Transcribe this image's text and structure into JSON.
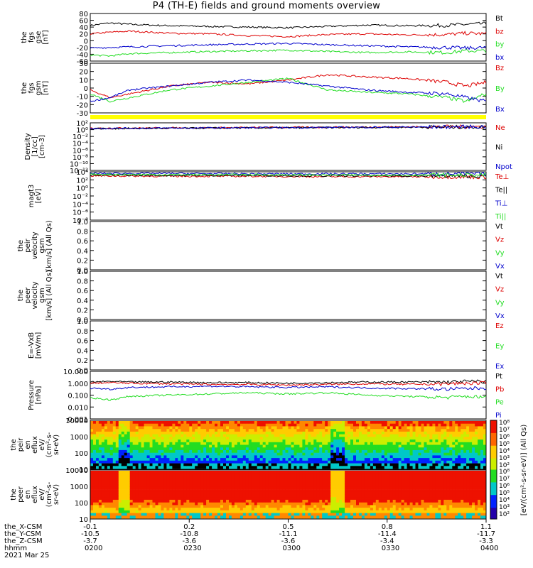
{
  "title": "P4 (TH-E) fields and ground moments overview",
  "date_label": "2021 Mar 25",
  "colors": {
    "black": "#000000",
    "red": "#dd0000",
    "green": "#22dd22",
    "blue": "#0000cc",
    "yellow": "#ffff00"
  },
  "x_axis": {
    "ticks": [
      {
        "the_X_CSM": "-0.1",
        "the_Y_CSM": "-10.5",
        "the_Z_CSM": "-3.7",
        "hhmm": "0200"
      },
      {
        "the_X_CSM": "0.2",
        "the_Y_CSM": "-10.8",
        "the_Z_CSM": "-3.6",
        "hhmm": "0230"
      },
      {
        "the_X_CSM": "0.5",
        "the_Y_CSM": "-11.1",
        "the_Z_CSM": "-3.6",
        "hhmm": "0300"
      },
      {
        "the_X_CSM": "0.8",
        "the_Y_CSM": "-11.4",
        "the_Z_CSM": "-3.4",
        "hhmm": "0330"
      },
      {
        "the_X_CSM": "1.1",
        "the_Y_CSM": "-11.7",
        "the_Z_CSM": "-3.3",
        "hhmm": "0400"
      }
    ],
    "row_labels": [
      "the_X-CSM",
      "the_Y-CSM",
      "the_Z-CSM",
      "hhmm"
    ]
  },
  "chart_data": [
    {
      "type": "line",
      "id": "fgs",
      "ylabel": [
        "the",
        "fgs",
        "gse",
        "[nT]"
      ],
      "yticks": [
        "80",
        "60",
        "40",
        "20",
        "0",
        "-20",
        "-40",
        "-60"
      ],
      "ylim": [
        -60,
        80
      ],
      "legend": [
        "Bt",
        "bz",
        "by",
        "bx"
      ],
      "series": [
        {
          "name": "Bt",
          "color": "#000000",
          "x": [
            0,
            0.05,
            0.1,
            0.2,
            0.3,
            0.4,
            0.5,
            0.6,
            0.7,
            0.8,
            0.9,
            0.95,
            1
          ],
          "values": [
            45,
            52,
            48,
            44,
            42,
            40,
            38,
            42,
            46,
            44,
            45,
            48,
            50
          ]
        },
        {
          "name": "bz",
          "color": "#dd0000",
          "x": [
            0,
            0.05,
            0.1,
            0.2,
            0.3,
            0.4,
            0.5,
            0.6,
            0.7,
            0.8,
            0.9,
            0.95,
            1
          ],
          "values": [
            20,
            25,
            28,
            22,
            20,
            15,
            12,
            18,
            20,
            17,
            18,
            22,
            20
          ]
        },
        {
          "name": "by",
          "color": "#22dd22",
          "x": [
            0,
            0.05,
            0.1,
            0.2,
            0.3,
            0.4,
            0.5,
            0.6,
            0.7,
            0.8,
            0.9,
            0.95,
            1
          ],
          "values": [
            -42,
            -45,
            -38,
            -35,
            -32,
            -30,
            -28,
            -32,
            -35,
            -33,
            -35,
            -30,
            -30
          ]
        },
        {
          "name": "bx",
          "color": "#0000cc",
          "x": [
            0,
            0.05,
            0.1,
            0.2,
            0.3,
            0.4,
            0.5,
            0.6,
            0.7,
            0.8,
            0.9,
            0.95,
            1
          ],
          "values": [
            -22,
            -20,
            -18,
            -15,
            -12,
            -10,
            -8,
            -12,
            -15,
            -18,
            -20,
            -22,
            -20
          ]
        }
      ]
    },
    {
      "type": "line",
      "id": "fgs_gsm",
      "ylabel": [
        "the",
        "fgs",
        "gsm",
        "[nT]"
      ],
      "yticks": [
        "30",
        "20",
        "10",
        "0",
        "-10",
        "-20",
        "-30"
      ],
      "ylim": [
        -35,
        30
      ],
      "legend": [
        "Bz",
        "By",
        "Bx"
      ],
      "series": [
        {
          "name": "Bz",
          "color": "#dd0000",
          "x": [
            0,
            0.05,
            0.1,
            0.2,
            0.3,
            0.4,
            0.5,
            0.6,
            0.7,
            0.8,
            0.9,
            0.95,
            1
          ],
          "values": [
            -5,
            -15,
            -10,
            0,
            5,
            3,
            8,
            15,
            12,
            10,
            5,
            0,
            5
          ]
        },
        {
          "name": "By",
          "color": "#22dd22",
          "x": [
            0,
            0.05,
            0.1,
            0.2,
            0.3,
            0.4,
            0.5,
            0.6,
            0.7,
            0.8,
            0.9,
            0.95,
            1
          ],
          "values": [
            -10,
            -20,
            -15,
            -5,
            0,
            5,
            10,
            -5,
            -8,
            -10,
            -15,
            -20,
            -10
          ]
        },
        {
          "name": "Bx",
          "color": "#0000cc",
          "x": [
            0,
            0.05,
            0.1,
            0.2,
            0.3,
            0.4,
            0.5,
            0.6,
            0.7,
            0.8,
            0.9,
            0.95,
            1
          ],
          "values": [
            -20,
            -15,
            -5,
            0,
            5,
            8,
            5,
            0,
            -5,
            -8,
            -10,
            -15,
            -20
          ]
        }
      ]
    },
    {
      "type": "line",
      "id": "density",
      "ylabel": [
        "Density",
        "[1/cc]",
        "[cm-3]"
      ],
      "yticks": [
        "10²",
        "10⁰",
        "10⁻²",
        "10⁻⁴",
        "10⁻⁶",
        "10⁻⁸",
        "10⁻¹⁰",
        "10⁻¹²"
      ],
      "ylim": [
        -12,
        2
      ],
      "yscale": "log",
      "legend": [
        "Ne",
        "Ni",
        "Npot"
      ],
      "series": [
        {
          "name": "Ne",
          "color": "#dd0000",
          "x": [
            0,
            0.2,
            0.4,
            0.6,
            0.8,
            1
          ],
          "values": [
            0.4,
            0.5,
            0.6,
            0.7,
            0.8,
            0.9
          ]
        },
        {
          "name": "Ni",
          "color": "#000000",
          "x": [
            0,
            0.2,
            0.4,
            0.6,
            0.8,
            1
          ],
          "values": [
            0.3,
            0.4,
            0.5,
            0.6,
            0.7,
            0.8
          ]
        },
        {
          "name": "Npot",
          "color": "#0000cc",
          "x": [
            0,
            0.2,
            0.4,
            0.6,
            0.8,
            1
          ],
          "values": [
            0.35,
            0.45,
            0.55,
            0.65,
            0.75,
            0.85
          ]
        }
      ]
    },
    {
      "type": "line",
      "id": "temp",
      "ylabel": [
        "magt3",
        "[eV]"
      ],
      "yticks": [
        "10⁴",
        "10²",
        "10⁰",
        "10⁻²",
        "10⁻⁴",
        "10⁻⁶",
        "10⁻⁸"
      ],
      "ylim": [
        -8,
        4
      ],
      "yscale": "log",
      "legend": [
        "Te⊥",
        "Te||",
        "Ti⊥",
        "Ti||"
      ],
      "series": [
        {
          "name": "Te⊥",
          "color": "#dd0000",
          "x": [
            0,
            0.2,
            0.4,
            0.6,
            0.8,
            1
          ],
          "values": [
            3.0,
            2.9,
            2.9,
            2.8,
            2.8,
            2.7
          ]
        },
        {
          "name": "Te||",
          "color": "#000000",
          "x": [
            0,
            0.2,
            0.4,
            0.6,
            0.8,
            1
          ],
          "values": [
            3.2,
            3.1,
            3.1,
            3.0,
            3.0,
            2.9
          ]
        },
        {
          "name": "Ti⊥",
          "color": "#0000cc",
          "x": [
            0,
            0.2,
            0.4,
            0.6,
            0.8,
            1
          ],
          "values": [
            3.6,
            3.6,
            3.5,
            3.5,
            3.5,
            3.5
          ]
        },
        {
          "name": "Ti||",
          "color": "#22dd22",
          "x": [
            0,
            0.2,
            0.4,
            0.6,
            0.8,
            1
          ],
          "values": [
            3.4,
            3.3,
            3.3,
            3.2,
            3.2,
            3.2
          ]
        }
      ]
    },
    {
      "type": "line",
      "id": "peir_vel",
      "ylabel": [
        "the",
        "peir",
        "velocity",
        "gsm",
        "[km/s] (All Qs)"
      ],
      "yticks": [
        "1.0",
        "0.8",
        "0.6",
        "0.4",
        "0.2",
        "0.0"
      ],
      "ylim": [
        0,
        1
      ],
      "legend": [
        "Vt",
        "Vz",
        "Vy",
        "Vx"
      ],
      "series": []
    },
    {
      "type": "line",
      "id": "peer_vel",
      "ylabel": [
        "the",
        "peer",
        "velocity",
        "gsm",
        "[km/s] (All Qs)"
      ],
      "yticks": [
        "1.0",
        "0.8",
        "0.6",
        "0.4",
        "0.2",
        "0.0"
      ],
      "ylim": [
        0,
        1
      ],
      "legend": [
        "Vt",
        "Vz",
        "Vy",
        "Vx"
      ],
      "series": []
    },
    {
      "type": "line",
      "id": "efield",
      "ylabel": [
        "E=-VxB",
        "[mV/m]"
      ],
      "yticks": [
        "1.0",
        "0.8",
        "0.6",
        "0.4",
        "0.2",
        "0.0"
      ],
      "ylim": [
        0,
        1
      ],
      "legend": [
        "Ez",
        "Ey",
        "Ex"
      ],
      "series": []
    },
    {
      "type": "line",
      "id": "pressure",
      "ylabel": [
        "Pressure",
        "[nPa]"
      ],
      "yticks": [
        "10.000",
        "1.000",
        "0.100",
        "0.010",
        "0.001"
      ],
      "ylim": [
        -3,
        1
      ],
      "yscale": "log",
      "legend": [
        "Pt",
        "Pb",
        "Pe",
        "Pi"
      ],
      "series": [
        {
          "name": "Pt",
          "color": "#000000",
          "x": [
            0,
            0.05,
            0.1,
            0.2,
            0.3,
            0.4,
            0.5,
            0.6,
            0.7,
            0.8,
            0.9,
            0.95,
            1
          ],
          "values": [
            0.1,
            0.15,
            0.1,
            0.1,
            0.05,
            0.05,
            0.0,
            0.05,
            0.1,
            0.1,
            0.1,
            0.15,
            0.15
          ]
        },
        {
          "name": "Pb",
          "color": "#dd0000",
          "x": [
            0,
            0.05,
            0.1,
            0.2,
            0.3,
            0.4,
            0.5,
            0.6,
            0.7,
            0.8,
            0.9,
            0.95,
            1
          ],
          "values": [
            0.0,
            0.05,
            0.0,
            -0.05,
            -0.1,
            -0.1,
            -0.15,
            -0.1,
            -0.05,
            -0.1,
            -0.05,
            0.0,
            0.0
          ]
        },
        {
          "name": "Pe",
          "color": "#22dd22",
          "x": [
            0,
            0.05,
            0.1,
            0.2,
            0.3,
            0.4,
            0.5,
            0.6,
            0.7,
            0.8,
            0.9,
            0.95,
            1
          ],
          "values": [
            -1.2,
            -1.4,
            -1.1,
            -1.0,
            -0.9,
            -0.8,
            -0.9,
            -0.8,
            -1.0,
            -1.1,
            -1.2,
            -1.1,
            -1.2
          ]
        },
        {
          "name": "Pi",
          "color": "#0000cc",
          "x": [
            0,
            0.05,
            0.1,
            0.2,
            0.3,
            0.4,
            0.5,
            0.6,
            0.7,
            0.8,
            0.9,
            0.95,
            1
          ],
          "values": [
            -0.4,
            -0.5,
            -0.35,
            -0.3,
            -0.25,
            -0.3,
            -0.35,
            -0.3,
            -0.4,
            -0.45,
            -0.5,
            -0.45,
            -0.4
          ]
        }
      ]
    },
    {
      "type": "heatmap",
      "id": "peir_eflux",
      "ylabel": [
        "the",
        "peir",
        "en",
        "eflux",
        "eV/",
        "(cm²-s-",
        "sr-eV)"
      ],
      "yticks": [
        "10000",
        "1000",
        "100",
        "10"
      ],
      "ylim": [
        1,
        4
      ]
    },
    {
      "type": "heatmap",
      "id": "peer_eflux",
      "ylabel": [
        "the",
        "peer",
        "en",
        "eflux",
        "eV/",
        "(cm²-s-",
        "sr-eV)"
      ],
      "yticks": [
        "10000",
        "1000",
        "100",
        "10"
      ],
      "ylim": [
        1,
        4
      ]
    }
  ],
  "colorbar": {
    "label": "[eV/(cm²-s-sr-eV)] (All Qs)",
    "ticks_top": [
      "10⁸",
      "10⁷",
      "10⁶",
      "10⁵",
      "10⁴",
      "10³",
      "10²"
    ],
    "ticks_bottom": [
      "10⁸",
      "10⁷",
      "10⁶",
      "10⁵",
      "10⁴",
      "10³",
      "10²"
    ]
  }
}
